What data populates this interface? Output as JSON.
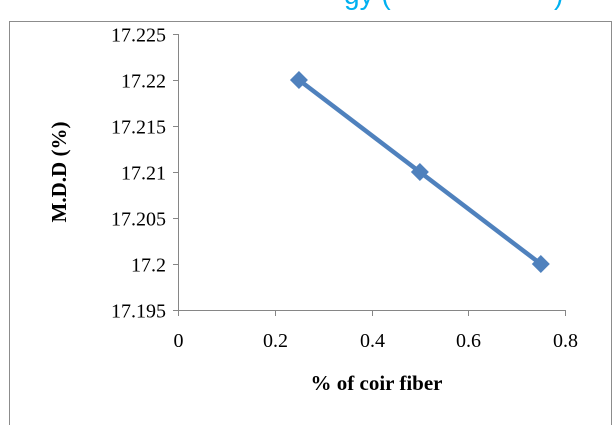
{
  "header": {
    "fragment_left": "gy (",
    "fragment_right": ")",
    "color": "#00b0f0"
  },
  "chart_data": {
    "type": "line",
    "title": "",
    "xlabel": "% of coir fiber",
    "ylabel": "M.D.D (%)",
    "xlim": [
      0,
      0.8
    ],
    "ylim": [
      17.195,
      17.225
    ],
    "xticks": [
      "0",
      "0.2",
      "0.4",
      "0.6",
      "0.8"
    ],
    "yticks": [
      "17.225",
      "17.22",
      "17.215",
      "17.21",
      "17.205",
      "17.2",
      "17.195"
    ],
    "series": [
      {
        "x": [
          0.25,
          0.5,
          0.75
        ],
        "y": [
          17.22,
          17.21,
          17.2
        ],
        "color": "#4f81bd",
        "marker": "diamond"
      }
    ],
    "grid": false,
    "legend": "none"
  }
}
